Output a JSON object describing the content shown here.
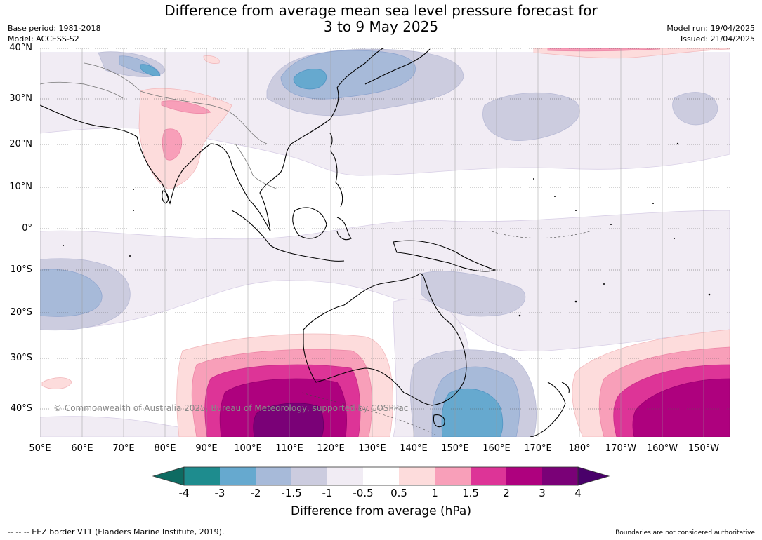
{
  "title": {
    "line1": "Difference from average mean sea level pressure forecast for",
    "line2": "3 to 9 May 2025"
  },
  "meta_left": {
    "base_period": "Base period: 1981-2018",
    "model": "Model: ACCESS-S2"
  },
  "meta_right": {
    "model_run": "Model run: 19/04/2025",
    "issued": "Issued: 21/04/2025"
  },
  "map": {
    "lat_labels": [
      "40°N",
      "30°N",
      "20°N",
      "10°N",
      "0°",
      "10°S",
      "20°S",
      "30°S",
      "40°S"
    ],
    "lon_labels": [
      "50°E",
      "60°E",
      "70°E",
      "80°E",
      "90°E",
      "100°E",
      "110°E",
      "120°E",
      "130°E",
      "140°E",
      "150°E",
      "160°E",
      "170°E",
      "180°",
      "170°W",
      "160°W",
      "150°W"
    ],
    "copyright": "© Commonwealth of Australia 2025, Bureau of Meteorology, supported by COSPPac"
  },
  "colorbar": {
    "ticks": [
      "-4",
      "-3",
      "-2",
      "-1.5",
      "-1",
      "-0.5",
      "0.5",
      "1",
      "1.5",
      "2",
      "3",
      "4"
    ],
    "colors": [
      "#1e8c8e",
      "#66a9cf",
      "#a7bad9",
      "#ccccdf",
      "#f1ecf4",
      "#ffffff",
      "#fddcdc",
      "#f89fb9",
      "#dd3497",
      "#ae017e",
      "#7a0177"
    ],
    "under_color": "#0e6b62",
    "over_color": "#49006a",
    "label": "Difference from average (hPa)"
  },
  "footer": {
    "eez": "--  --  -- EEZ border V11 (Flanders Marine Institute, 2019).",
    "disclaimer": "Boundaries are not considered authoritative"
  }
}
